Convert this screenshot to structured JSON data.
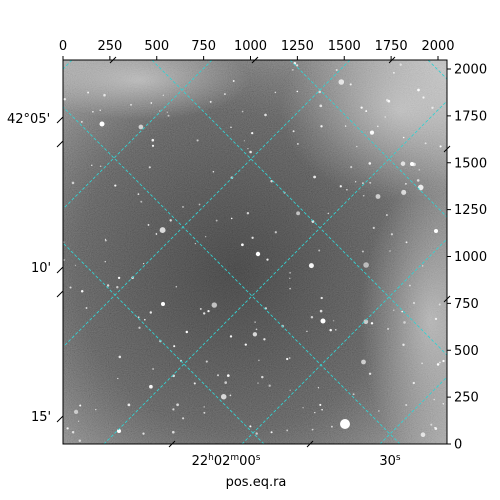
{
  "chart_data": {
    "type": "image",
    "colormap": "gray",
    "grid": true,
    "grid_color": "#35d0d0",
    "background_tone": "#5a5a5a",
    "xlabel": "pos.eq.ra",
    "pixel_axis": {
      "x_ticks": [
        0,
        250,
        500,
        750,
        1000,
        1250,
        1500,
        1750,
        2000
      ],
      "y_ticks": [
        0,
        250,
        500,
        750,
        1000,
        1250,
        1500,
        1750,
        2000
      ]
    },
    "world_axis": {
      "ra_tick_labels": [
        "22h02m00s",
        "30s"
      ],
      "dec_tick_labels": [
        "42°05'",
        "10'",
        "15'"
      ]
    }
  }
}
